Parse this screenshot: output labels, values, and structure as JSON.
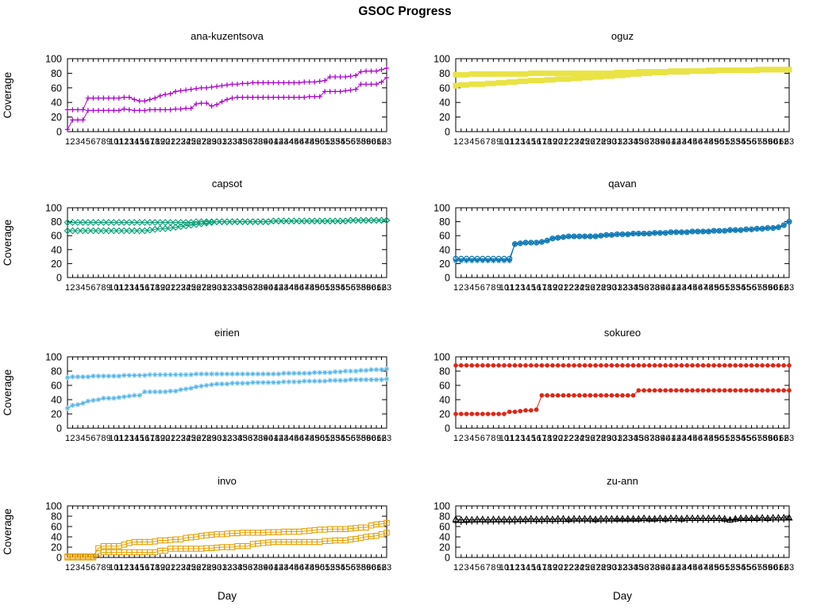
{
  "title": "GSOC Progress",
  "axes": {
    "ylabel": "Coverage",
    "xlabel": "Day",
    "ymin": 0,
    "ymax": 100,
    "yticks": [
      0,
      20,
      40,
      60,
      80,
      100
    ],
    "day_start": 1,
    "day_end": 63
  },
  "chart_data": [
    {
      "type": "line",
      "title": "ana-kuzentsova",
      "color": "#aa00cc",
      "line_width": 1,
      "markers": [
        "plus",
        "plus"
      ],
      "ylim": [
        0,
        100
      ],
      "series": [
        {
          "values": [
            30,
            30,
            30,
            30,
            46,
            46,
            46,
            46,
            46,
            46,
            46,
            47,
            47,
            44,
            42,
            42,
            44,
            46,
            49,
            51,
            52,
            55,
            56,
            57,
            58,
            59,
            60,
            60,
            61,
            62,
            63,
            64,
            65,
            65,
            66,
            66,
            67,
            67,
            67,
            67,
            67,
            67,
            67,
            67,
            67,
            67,
            68,
            68,
            68,
            69,
            70,
            75,
            75,
            75,
            75,
            76,
            77,
            82,
            83,
            83,
            83,
            85,
            87
          ]
        },
        {
          "values": [
            3,
            16,
            16,
            16,
            29,
            29,
            29,
            29,
            29,
            29,
            29,
            31,
            30,
            29,
            29,
            29,
            30,
            30,
            30,
            30,
            30,
            31,
            31,
            32,
            32,
            38,
            39,
            39,
            35,
            37,
            41,
            44,
            46,
            47,
            47,
            47,
            47,
            47,
            47,
            47,
            47,
            47,
            47,
            47,
            47,
            47,
            47,
            48,
            48,
            48,
            55,
            55,
            55,
            55,
            56,
            57,
            58,
            65,
            65,
            65,
            65,
            68,
            74
          ]
        }
      ]
    },
    {
      "type": "line",
      "title": "oguz",
      "color": "#e9e345",
      "line_width": 5,
      "markers": [
        "fsquare",
        "fsquare"
      ],
      "ylim": [
        0,
        100
      ],
      "series": [
        {
          "values": [
            78,
            78,
            78,
            79,
            79,
            79,
            79,
            79,
            79,
            79,
            79,
            79,
            79,
            79,
            80,
            80,
            80,
            80,
            80,
            80,
            80,
            80,
            80,
            80,
            80,
            80,
            80,
            80,
            80,
            80,
            81,
            81,
            81,
            81,
            82,
            82,
            82,
            82,
            82,
            82,
            83,
            83,
            83,
            83,
            83,
            83,
            83,
            84,
            84,
            84,
            84,
            84,
            84,
            84,
            84,
            84,
            84,
            85,
            85,
            85,
            85,
            85,
            85
          ]
        },
        {
          "values": [
            63,
            64,
            64,
            65,
            65,
            65,
            66,
            66,
            67,
            67,
            68,
            68,
            69,
            69,
            70,
            70,
            70,
            71,
            71,
            72,
            72,
            72,
            73,
            73,
            74,
            74,
            75,
            75,
            76,
            76,
            77,
            77,
            78,
            79,
            79,
            80,
            80,
            81,
            81,
            81,
            82,
            82,
            82,
            82,
            83,
            83,
            83,
            83,
            83,
            84,
            84,
            84,
            84,
            84,
            84,
            84,
            85,
            85,
            85,
            85,
            85,
            85,
            85
          ]
        }
      ]
    },
    {
      "type": "line",
      "title": "capsot",
      "color": "#009e73",
      "line_width": 1,
      "markers": [
        "diamond",
        "diamond"
      ],
      "ylim": [
        0,
        100
      ],
      "series": [
        {
          "values": [
            79,
            79,
            79,
            79,
            79,
            79,
            79,
            79,
            79,
            79,
            79,
            79,
            79,
            79,
            79,
            79,
            79,
            79,
            79,
            79,
            79,
            79,
            79,
            79,
            79,
            80,
            80,
            80,
            80,
            80,
            80,
            80,
            80,
            80,
            80,
            80,
            80,
            80,
            80,
            80,
            81,
            81,
            81,
            81,
            81,
            81,
            81,
            81,
            81,
            81,
            81,
            81,
            81,
            81,
            81,
            82,
            82,
            82,
            82,
            82,
            82,
            82,
            82
          ]
        },
        {
          "values": [
            67,
            67,
            67,
            67,
            67,
            67,
            67,
            67,
            67,
            67,
            67,
            67,
            67,
            67,
            67,
            67,
            68,
            69,
            70,
            70,
            71,
            72,
            73,
            74,
            75,
            76,
            77,
            78,
            79,
            80,
            80,
            80,
            80,
            80,
            80,
            80,
            80,
            80,
            80,
            80,
            81,
            81,
            81,
            81,
            81,
            81,
            81,
            81,
            81,
            81,
            81,
            81,
            81,
            81,
            81,
            82,
            82,
            82,
            82,
            82,
            82,
            82,
            82
          ]
        }
      ]
    },
    {
      "type": "line",
      "title": "qavan",
      "color": "#0072b2",
      "line_width": 1,
      "markers": [
        "circle",
        "asterisk"
      ],
      "ylim": [
        0,
        100
      ],
      "series": [
        {
          "values": [
            27,
            27,
            27,
            27,
            27,
            27,
            27,
            27,
            27,
            27,
            27,
            48,
            49,
            50,
            50,
            50,
            51,
            53,
            56,
            57,
            58,
            59,
            59,
            59,
            59,
            59,
            59,
            60,
            61,
            61,
            62,
            62,
            62,
            63,
            63,
            63,
            63,
            64,
            64,
            64,
            65,
            65,
            65,
            65,
            66,
            66,
            66,
            66,
            67,
            67,
            67,
            68,
            68,
            68,
            69,
            69,
            70,
            70,
            71,
            71,
            72,
            75,
            80
          ]
        },
        {
          "values": [
            24,
            24,
            24,
            24,
            24,
            24,
            24,
            24,
            24,
            24,
            24,
            48,
            49,
            50,
            50,
            50,
            51,
            53,
            56,
            57,
            58,
            59,
            59,
            59,
            59,
            59,
            59,
            60,
            61,
            61,
            62,
            62,
            62,
            63,
            63,
            63,
            63,
            64,
            64,
            64,
            65,
            65,
            65,
            65,
            66,
            66,
            66,
            66,
            67,
            67,
            67,
            68,
            68,
            68,
            69,
            69,
            70,
            70,
            71,
            71,
            72,
            75,
            80
          ]
        }
      ]
    },
    {
      "type": "line",
      "title": "eirien",
      "color": "#56b4e9",
      "line_width": 1,
      "markers": [
        "asterisk",
        "asterisk"
      ],
      "ylim": [
        0,
        100
      ],
      "series": [
        {
          "values": [
            71,
            72,
            72,
            72,
            72,
            73,
            73,
            73,
            73,
            73,
            73,
            74,
            74,
            74,
            74,
            74,
            75,
            75,
            75,
            75,
            75,
            75,
            75,
            75,
            75,
            76,
            76,
            76,
            76,
            76,
            76,
            76,
            76,
            76,
            76,
            76,
            76,
            76,
            76,
            76,
            76,
            76,
            77,
            77,
            77,
            77,
            77,
            77,
            78,
            78,
            78,
            78,
            79,
            79,
            80,
            80,
            80,
            81,
            81,
            82,
            82,
            82,
            83
          ]
        },
        {
          "values": [
            28,
            32,
            33,
            35,
            38,
            39,
            40,
            42,
            42,
            42,
            43,
            44,
            45,
            46,
            46,
            51,
            51,
            51,
            51,
            51,
            52,
            52,
            54,
            55,
            56,
            58,
            59,
            60,
            61,
            62,
            62,
            62,
            63,
            63,
            63,
            63,
            64,
            64,
            64,
            64,
            64,
            64,
            65,
            65,
            65,
            65,
            66,
            66,
            66,
            66,
            66,
            67,
            67,
            67,
            67,
            68,
            68,
            68,
            68,
            68,
            68,
            68,
            69
          ]
        }
      ]
    },
    {
      "type": "line",
      "title": "sokureo",
      "color": "#dd2716",
      "line_width": 1,
      "markers": [
        "fcircle",
        "fcircle"
      ],
      "ylim": [
        0,
        100
      ],
      "series": [
        {
          "values": [
            88,
            88,
            88,
            88,
            88,
            88,
            88,
            88,
            88,
            88,
            88,
            88,
            88,
            88,
            88,
            88,
            88,
            88,
            88,
            88,
            88,
            88,
            88,
            88,
            88,
            88,
            88,
            88,
            88,
            88,
            88,
            88,
            88,
            88,
            88,
            88,
            88,
            88,
            88,
            88,
            88,
            88,
            88,
            88,
            88,
            88,
            88,
            88,
            88,
            88,
            88,
            88,
            88,
            88,
            88,
            88,
            88,
            88,
            88,
            88,
            88,
            88,
            88
          ]
        },
        {
          "values": [
            20,
            20,
            20,
            20,
            20,
            20,
            20,
            20,
            20,
            20,
            23,
            23,
            24,
            25,
            25,
            26,
            46,
            46,
            46,
            46,
            46,
            46,
            46,
            46,
            46,
            46,
            46,
            46,
            46,
            46,
            46,
            46,
            46,
            46,
            53,
            53,
            53,
            53,
            53,
            53,
            53,
            53,
            53,
            53,
            53,
            53,
            53,
            53,
            53,
            53,
            53,
            53,
            53,
            53,
            53,
            53,
            53,
            53,
            53,
            53,
            53,
            53,
            53
          ]
        }
      ]
    },
    {
      "type": "line",
      "title": "invo",
      "color": "#e69f00",
      "line_width": 1,
      "markers": [
        "square",
        "square"
      ],
      "ylim": [
        0,
        100
      ],
      "series": [
        {
          "values": [
            2,
            2,
            2,
            2,
            2,
            2,
            18,
            22,
            22,
            22,
            22,
            25,
            28,
            30,
            30,
            30,
            30,
            31,
            33,
            33,
            34,
            35,
            35,
            38,
            39,
            40,
            42,
            43,
            44,
            45,
            45,
            46,
            47,
            47,
            48,
            48,
            48,
            48,
            48,
            49,
            49,
            49,
            50,
            50,
            50,
            50,
            51,
            52,
            53,
            54,
            54,
            55,
            55,
            55,
            55,
            56,
            57,
            58,
            58,
            62,
            64,
            65,
            67
          ]
        },
        {
          "values": [
            0,
            0,
            0,
            0,
            0,
            0,
            8,
            10,
            10,
            10,
            10,
            10,
            10,
            10,
            10,
            10,
            10,
            10,
            13,
            13,
            17,
            17,
            17,
            17,
            17,
            17,
            17,
            18,
            18,
            19,
            20,
            20,
            20,
            22,
            22,
            22,
            26,
            27,
            28,
            29,
            30,
            30,
            30,
            30,
            30,
            30,
            30,
            30,
            30,
            30,
            32,
            32,
            33,
            33,
            33,
            35,
            36,
            38,
            40,
            41,
            42,
            45,
            48
          ]
        }
      ]
    },
    {
      "type": "line",
      "title": "zu-ann",
      "color": "#000000",
      "line_width": 1,
      "markers": [
        "triangle",
        "plus"
      ],
      "ylim": [
        0,
        100
      ],
      "series": [
        {
          "values": [
            74,
            73,
            74,
            73,
            74,
            74,
            73,
            74,
            74,
            74,
            74,
            74,
            74,
            74,
            75,
            74,
            74,
            75,
            74,
            75,
            75,
            74,
            75,
            75,
            75,
            75,
            74,
            75,
            75,
            75,
            75,
            75,
            75,
            75,
            75,
            76,
            75,
            75,
            76,
            75,
            76,
            76,
            75,
            76,
            76,
            76,
            76,
            76,
            76,
            76,
            75,
            73,
            75,
            76,
            76,
            76,
            76,
            77,
            76,
            77,
            77,
            77,
            77
          ]
        },
        {
          "values": [
            68,
            68,
            68,
            69,
            69,
            69,
            69,
            69,
            69,
            69,
            69,
            69,
            70,
            70,
            70,
            70,
            70,
            70,
            70,
            70,
            70,
            71,
            71,
            71,
            71,
            71,
            71,
            71,
            71,
            71,
            72,
            72,
            72,
            72,
            72,
            72,
            72,
            72,
            72,
            72,
            72,
            72,
            72,
            72,
            72,
            72,
            72,
            72,
            72,
            72,
            72,
            72,
            73,
            73,
            73,
            73,
            73,
            73,
            73,
            73,
            73,
            73,
            74
          ]
        }
      ]
    }
  ]
}
